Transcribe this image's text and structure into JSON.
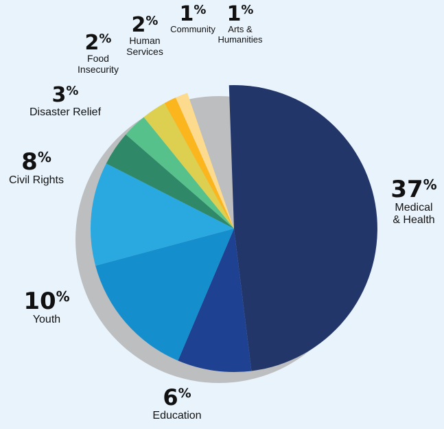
{
  "chart_data": {
    "type": "pie",
    "title": "",
    "categories": [
      "Medical & Health",
      "Education",
      "Youth",
      "Civil Rights",
      "Disaster Relief",
      "Food Insecurity",
      "Human Services",
      "Community",
      "Arts & Humanities"
    ],
    "values": [
      37,
      6,
      10,
      8,
      3,
      2,
      2,
      1,
      1
    ],
    "slices": [
      {
        "label": "Medical & Health",
        "label_lines": [
          "Medical",
          "& Health"
        ],
        "value": 37,
        "value_text": "37",
        "color": "#223669"
      },
      {
        "label": "Education",
        "label_lines": [
          "Education"
        ],
        "value": 6,
        "value_text": "6",
        "color": "#1f4191"
      },
      {
        "label": "Youth",
        "label_lines": [
          "Youth"
        ],
        "value": 10,
        "value_text": "10",
        "color": "#158ecd"
      },
      {
        "label": "Civil Rights",
        "label_lines": [
          "Civil Rights"
        ],
        "value": 8,
        "value_text": "8",
        "color": "#2aa9e1"
      },
      {
        "label": "Disaster Relief",
        "label_lines": [
          "Disaster Relief"
        ],
        "value": 3,
        "value_text": "3",
        "color": "#2f8867"
      },
      {
        "label": "Food Insecurity",
        "label_lines": [
          "Food",
          "Insecurity"
        ],
        "value": 2,
        "value_text": "2",
        "color": "#56c18b"
      },
      {
        "label": "Human Services",
        "label_lines": [
          "Human",
          "Services"
        ],
        "value": 2,
        "value_text": "2",
        "color": "#ddd050"
      },
      {
        "label": "Community",
        "label_lines": [
          "Community"
        ],
        "value": 1,
        "value_text": "1",
        "color": "#fbb61d"
      },
      {
        "label": "Arts & Humanities",
        "label_lines": [
          "Arts &",
          "Humanities"
        ],
        "value": 1,
        "value_text": "1",
        "color": "#fddb8e"
      }
    ],
    "percent_sign": "%",
    "shadow_color": "#bcbec0"
  }
}
